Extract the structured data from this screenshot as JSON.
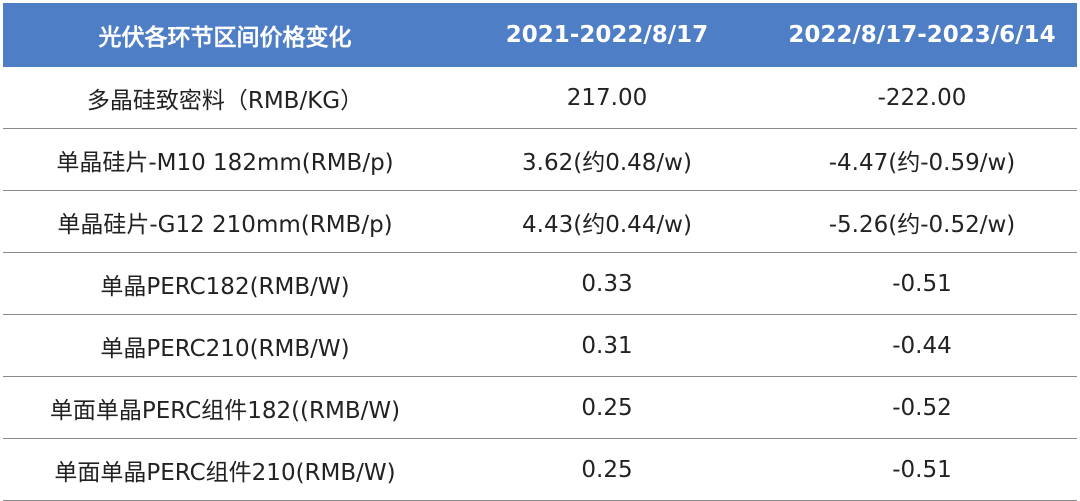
{
  "table": {
    "headers": [
      "光伏各环节区间价格变化",
      "2021-2022/8/17",
      "2022/8/17-2023/6/14"
    ],
    "rows": [
      [
        "多晶硅致密料（RMB/KG）",
        "217.00",
        "-222.00"
      ],
      [
        "单晶硅片-M10 182mm(RMB/p)",
        "3.62(约0.48/w)",
        "-4.47(约-0.59/w)"
      ],
      [
        "单晶硅片-G12 210mm(RMB/p)",
        "4.43(约0.44/w)",
        "-5.26(约-0.52/w)"
      ],
      [
        "单晶PERC182(RMB/W)",
        "0.33",
        "-0.51"
      ],
      [
        "单晶PERC210(RMB/W)",
        "0.31",
        "-0.44"
      ],
      [
        "单面单晶PERC组件182((RMB/W)",
        "0.25",
        "-0.52"
      ],
      [
        "单面单晶PERC组件210(RMB/W)",
        "0.25",
        "-0.51"
      ]
    ]
  },
  "colors": {
    "header_bg": "#4e7ec5",
    "header_text": "#ffffff",
    "body_text": "#222222",
    "row_divider": "#8a8a8a"
  }
}
